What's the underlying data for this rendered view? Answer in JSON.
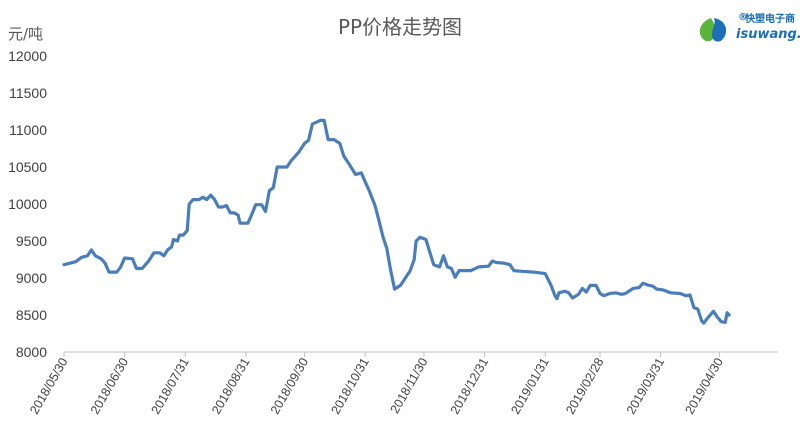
{
  "logo": {
    "text_cn": "快塑电子商",
    "text_en": "isuwang.co",
    "mark": "®"
  },
  "chart_data": {
    "type": "line",
    "title": "PP价格走势图",
    "ylabel": "元/吨",
    "ylim": [
      8000,
      12000
    ],
    "yticks": [
      8000,
      8500,
      9000,
      9500,
      10000,
      10500,
      11000,
      11500,
      12000
    ],
    "xlim": [
      "2018-05-30",
      "2019-05-30"
    ],
    "xticks": [
      "2018/05/30",
      "2018/06/30",
      "2018/07/31",
      "2018/08/31",
      "2018/09/30",
      "2018/10/31",
      "2018/11/30",
      "2018/12/31",
      "2019/01/31",
      "2019/02/28",
      "2019/03/31",
      "2019/04/30"
    ],
    "series": [
      {
        "color": "#4a7ebb",
        "points": [
          [
            "2018-05-30",
            9180
          ],
          [
            "2018-06-02",
            9200
          ],
          [
            "2018-06-05",
            9220
          ],
          [
            "2018-06-08",
            9280
          ],
          [
            "2018-06-11",
            9300
          ],
          [
            "2018-06-13",
            9380
          ],
          [
            "2018-06-15",
            9300
          ],
          [
            "2018-06-18",
            9260
          ],
          [
            "2018-06-20",
            9200
          ],
          [
            "2018-06-22",
            9080
          ],
          [
            "2018-06-26",
            9080
          ],
          [
            "2018-06-28",
            9150
          ],
          [
            "2018-06-30",
            9270
          ],
          [
            "2018-07-04",
            9260
          ],
          [
            "2018-07-06",
            9130
          ],
          [
            "2018-07-09",
            9130
          ],
          [
            "2018-07-12",
            9220
          ],
          [
            "2018-07-15",
            9340
          ],
          [
            "2018-07-18",
            9340
          ],
          [
            "2018-07-20",
            9300
          ],
          [
            "2018-07-22",
            9380
          ],
          [
            "2018-07-24",
            9420
          ],
          [
            "2018-07-25",
            9520
          ],
          [
            "2018-07-27",
            9500
          ],
          [
            "2018-07-28",
            9580
          ],
          [
            "2018-07-30",
            9580
          ],
          [
            "2018-08-01",
            9640
          ],
          [
            "2018-08-02",
            10000
          ],
          [
            "2018-08-04",
            10060
          ],
          [
            "2018-08-07",
            10060
          ],
          [
            "2018-08-09",
            10090
          ],
          [
            "2018-08-11",
            10060
          ],
          [
            "2018-08-13",
            10120
          ],
          [
            "2018-08-15",
            10060
          ],
          [
            "2018-08-17",
            9960
          ],
          [
            "2018-08-19",
            9960
          ],
          [
            "2018-08-21",
            9980
          ],
          [
            "2018-08-23",
            9880
          ],
          [
            "2018-08-25",
            9880
          ],
          [
            "2018-08-27",
            9850
          ],
          [
            "2018-08-28",
            9740
          ],
          [
            "2018-08-30",
            9740
          ],
          [
            "2018-09-01",
            9740
          ],
          [
            "2018-09-03",
            9860
          ],
          [
            "2018-09-05",
            9990
          ],
          [
            "2018-09-08",
            9990
          ],
          [
            "2018-09-10",
            9900
          ],
          [
            "2018-09-12",
            10180
          ],
          [
            "2018-09-14",
            10220
          ],
          [
            "2018-09-16",
            10500
          ],
          [
            "2018-09-21",
            10500
          ],
          [
            "2018-09-23",
            10580
          ],
          [
            "2018-09-27",
            10700
          ],
          [
            "2018-09-30",
            10820
          ],
          [
            "2018-10-02",
            10860
          ],
          [
            "2018-10-04",
            11080
          ],
          [
            "2018-10-08",
            11130
          ],
          [
            "2018-10-10",
            11130
          ],
          [
            "2018-10-12",
            10870
          ],
          [
            "2018-10-15",
            10870
          ],
          [
            "2018-10-18",
            10820
          ],
          [
            "2018-10-20",
            10650
          ],
          [
            "2018-10-23",
            10530
          ],
          [
            "2018-10-26",
            10400
          ],
          [
            "2018-10-29",
            10420
          ],
          [
            "2018-10-31",
            10300
          ],
          [
            "2018-11-02",
            10180
          ],
          [
            "2018-11-05",
            9980
          ],
          [
            "2018-11-07",
            9780
          ],
          [
            "2018-11-09",
            9560
          ],
          [
            "2018-11-11",
            9400
          ],
          [
            "2018-11-13",
            9100
          ],
          [
            "2018-11-15",
            8850
          ],
          [
            "2018-11-18",
            8900
          ],
          [
            "2018-11-20",
            8980
          ],
          [
            "2018-11-23",
            9100
          ],
          [
            "2018-11-25",
            9250
          ],
          [
            "2018-11-26",
            9500
          ],
          [
            "2018-11-28",
            9550
          ],
          [
            "2018-12-01",
            9520
          ],
          [
            "2018-12-03",
            9350
          ],
          [
            "2018-12-05",
            9180
          ],
          [
            "2018-12-08",
            9150
          ],
          [
            "2018-12-10",
            9300
          ],
          [
            "2018-12-12",
            9150
          ],
          [
            "2018-12-14",
            9130
          ],
          [
            "2018-12-16",
            9010
          ],
          [
            "2018-12-18",
            9100
          ],
          [
            "2018-12-24",
            9100
          ],
          [
            "2018-12-28",
            9150
          ],
          [
            "2019-01-02",
            9160
          ],
          [
            "2019-01-04",
            9230
          ],
          [
            "2019-01-06",
            9210
          ],
          [
            "2019-01-10",
            9200
          ],
          [
            "2019-01-13",
            9180
          ],
          [
            "2019-01-15",
            9100
          ],
          [
            "2019-01-19",
            9090
          ],
          [
            "2019-01-25",
            9080
          ],
          [
            "2019-01-31",
            9060
          ],
          [
            "2019-02-03",
            8900
          ],
          [
            "2019-02-05",
            8760
          ],
          [
            "2019-02-06",
            8720
          ],
          [
            "2019-02-07",
            8800
          ],
          [
            "2019-02-10",
            8820
          ],
          [
            "2019-02-12",
            8800
          ],
          [
            "2019-02-14",
            8730
          ],
          [
            "2019-02-17",
            8780
          ],
          [
            "2019-02-19",
            8860
          ],
          [
            "2019-02-21",
            8810
          ],
          [
            "2019-02-23",
            8900
          ],
          [
            "2019-02-26",
            8900
          ],
          [
            "2019-02-28",
            8790
          ],
          [
            "2019-03-02",
            8760
          ],
          [
            "2019-03-05",
            8790
          ],
          [
            "2019-03-08",
            8800
          ],
          [
            "2019-03-11",
            8780
          ],
          [
            "2019-03-13",
            8790
          ],
          [
            "2019-03-17",
            8860
          ],
          [
            "2019-03-20",
            8870
          ],
          [
            "2019-03-22",
            8930
          ],
          [
            "2019-03-25",
            8900
          ],
          [
            "2019-03-27",
            8890
          ],
          [
            "2019-03-29",
            8850
          ],
          [
            "2019-04-01",
            8840
          ],
          [
            "2019-04-05",
            8800
          ],
          [
            "2019-04-10",
            8790
          ],
          [
            "2019-04-13",
            8760
          ],
          [
            "2019-04-15",
            8770
          ],
          [
            "2019-04-17",
            8600
          ],
          [
            "2019-04-19",
            8580
          ],
          [
            "2019-04-21",
            8420
          ],
          [
            "2019-04-22",
            8390
          ],
          [
            "2019-04-24",
            8460
          ],
          [
            "2019-04-27",
            8550
          ],
          [
            "2019-04-29",
            8470
          ],
          [
            "2019-05-01",
            8410
          ],
          [
            "2019-05-03",
            8400
          ],
          [
            "2019-05-04",
            8530
          ],
          [
            "2019-05-05",
            8500
          ]
        ]
      }
    ]
  }
}
